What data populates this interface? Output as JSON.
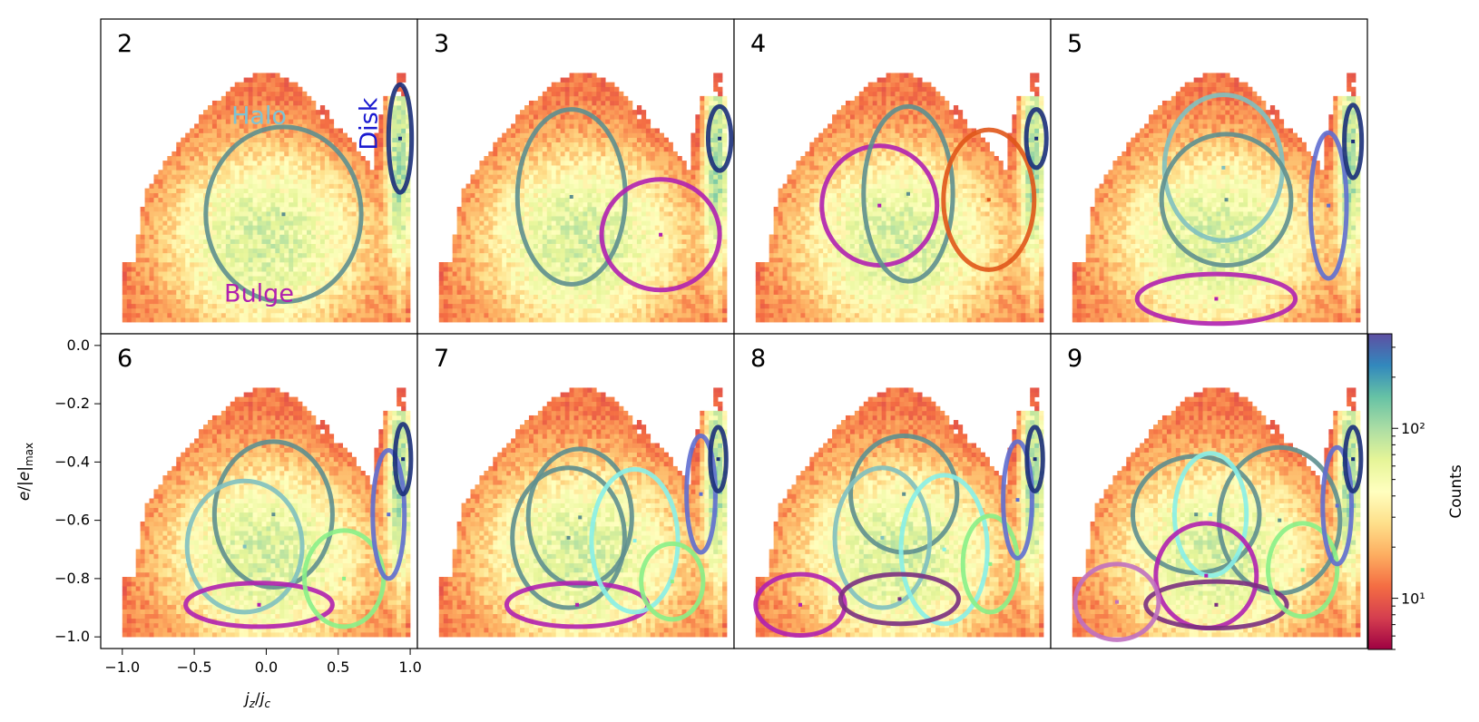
{
  "chart_data": {
    "type": "heatmap",
    "xlabel": "j_z/j_c",
    "ylabel": "e/|e|_max",
    "xlim": [
      -1.15,
      1.05
    ],
    "ylim": [
      -1.04,
      0.04
    ],
    "x_ticks": [
      -1.0,
      -0.5,
      0.0,
      0.5,
      1.0
    ],
    "x_tick_labels": [
      "−1.0",
      "−0.5",
      "0.0",
      "0.5",
      "1.0"
    ],
    "y_ticks": [
      0.0,
      -0.2,
      -0.4,
      -0.6,
      -0.8,
      -1.0
    ],
    "y_tick_labels": [
      "0.0",
      "−0.2",
      "−0.4",
      "−0.6",
      "−0.8",
      "−1.0"
    ],
    "colorbar": {
      "label": "Counts",
      "scale": "log",
      "range": [
        5,
        360
      ],
      "ticks": [
        10,
        100
      ],
      "tick_labels": [
        "10¹",
        "10²"
      ],
      "colormap": "Spectral"
    },
    "annotations": [
      {
        "text": "Halo",
        "color": "#7cc3d4"
      },
      {
        "text": "Bulge",
        "color": "#b020b0"
      },
      {
        "text": "Disk",
        "color": "#1a1ad0"
      }
    ],
    "panels": [
      {
        "label": "2",
        "components": [
          {
            "cx": 0.12,
            "cy": -0.63,
            "w": 1.08,
            "h": 0.6,
            "color": "#5e8f8f"
          },
          {
            "cx": 0.93,
            "cy": -0.37,
            "w": 0.16,
            "h": 0.37,
            "color": "#1b2f7a"
          }
        ]
      },
      {
        "label": "3",
        "components": [
          {
            "cx": -0.08,
            "cy": -0.57,
            "w": 0.75,
            "h": 0.6,
            "color": "#5e8f8f"
          },
          {
            "cx": 0.54,
            "cy": -0.7,
            "w": 0.82,
            "h": 0.38,
            "color": "#b020b0"
          },
          {
            "cx": 0.95,
            "cy": -0.37,
            "w": 0.16,
            "h": 0.22,
            "color": "#1b2f7a"
          }
        ]
      },
      {
        "label": "4",
        "components": [
          {
            "cx": -0.14,
            "cy": -0.6,
            "w": 0.8,
            "h": 0.41,
            "color": "#b020b0"
          },
          {
            "cx": 0.06,
            "cy": -0.56,
            "w": 0.62,
            "h": 0.6,
            "color": "#5e8f8f"
          },
          {
            "cx": 0.62,
            "cy": -0.58,
            "w": 0.63,
            "h": 0.48,
            "color": "#e0561a"
          },
          {
            "cx": 0.95,
            "cy": -0.37,
            "w": 0.14,
            "h": 0.2,
            "color": "#1b2f7a"
          }
        ]
      },
      {
        "label": "5",
        "components": [
          {
            "cx": 0.05,
            "cy": -0.47,
            "w": 0.82,
            "h": 0.5,
            "color": "#7fc0c0"
          },
          {
            "cx": 0.07,
            "cy": -0.58,
            "w": 0.9,
            "h": 0.45,
            "color": "#5e8f8f"
          },
          {
            "cx": 0.0,
            "cy": -0.92,
            "w": 1.1,
            "h": 0.17,
            "color": "#b020b0"
          },
          {
            "cx": 0.78,
            "cy": -0.6,
            "w": 0.25,
            "h": 0.5,
            "color": "#5f6ed0"
          },
          {
            "cx": 0.95,
            "cy": -0.38,
            "w": 0.12,
            "h": 0.25,
            "color": "#1b2f7a"
          }
        ]
      },
      {
        "label": "6",
        "components": [
          {
            "cx": 0.05,
            "cy": -0.58,
            "w": 0.82,
            "h": 0.5,
            "color": "#5e8f8f"
          },
          {
            "cx": -0.15,
            "cy": -0.69,
            "w": 0.8,
            "h": 0.45,
            "color": "#7fc0c0"
          },
          {
            "cx": -0.05,
            "cy": -0.89,
            "w": 1.02,
            "h": 0.15,
            "color": "#b020b0"
          },
          {
            "cx": 0.54,
            "cy": -0.8,
            "w": 0.55,
            "h": 0.33,
            "color": "#88f088"
          },
          {
            "cx": 0.85,
            "cy": -0.58,
            "w": 0.22,
            "h": 0.44,
            "color": "#5f6ed0"
          },
          {
            "cx": 0.95,
            "cy": -0.39,
            "w": 0.11,
            "h": 0.24,
            "color": "#1b2f7a"
          }
        ]
      },
      {
        "label": "7",
        "components": [
          {
            "cx": -0.1,
            "cy": -0.66,
            "w": 0.78,
            "h": 0.48,
            "color": "#5e8f8f"
          },
          {
            "cx": -0.02,
            "cy": -0.59,
            "w": 0.72,
            "h": 0.47,
            "color": "#5e8f8f"
          },
          {
            "cx": -0.04,
            "cy": -0.89,
            "w": 0.98,
            "h": 0.15,
            "color": "#b020b0"
          },
          {
            "cx": 0.36,
            "cy": -0.67,
            "w": 0.6,
            "h": 0.49,
            "color": "#88f0e8"
          },
          {
            "cx": 0.62,
            "cy": -0.81,
            "w": 0.43,
            "h": 0.26,
            "color": "#88f088"
          },
          {
            "cx": 0.82,
            "cy": -0.51,
            "w": 0.2,
            "h": 0.4,
            "color": "#5f6ed0"
          },
          {
            "cx": 0.94,
            "cy": -0.39,
            "w": 0.11,
            "h": 0.22,
            "color": "#1b2f7a"
          }
        ]
      },
      {
        "label": "8",
        "components": [
          {
            "cx": 0.03,
            "cy": -0.51,
            "w": 0.74,
            "h": 0.4,
            "color": "#5e8f8f"
          },
          {
            "cx": -0.12,
            "cy": -0.66,
            "w": 0.66,
            "h": 0.48,
            "color": "#7fc0c0"
          },
          {
            "cx": 0.31,
            "cy": -0.7,
            "w": 0.6,
            "h": 0.51,
            "color": "#88f0e8"
          },
          {
            "cx": -0.69,
            "cy": -0.89,
            "w": 0.62,
            "h": 0.21,
            "color": "#b020b0"
          },
          {
            "cx": 0.0,
            "cy": -0.87,
            "w": 0.82,
            "h": 0.17,
            "color": "#7a2f80"
          },
          {
            "cx": 0.63,
            "cy": -0.75,
            "w": 0.38,
            "h": 0.33,
            "color": "#88f088"
          },
          {
            "cx": 0.82,
            "cy": -0.53,
            "w": 0.2,
            "h": 0.4,
            "color": "#5f6ed0"
          },
          {
            "cx": 0.94,
            "cy": -0.39,
            "w": 0.11,
            "h": 0.22,
            "color": "#1b2f7a"
          }
        ]
      },
      {
        "label": "9",
        "components": [
          {
            "cx": -0.14,
            "cy": -0.58,
            "w": 0.88,
            "h": 0.4,
            "color": "#5e8f8f"
          },
          {
            "cx": 0.44,
            "cy": -0.6,
            "w": 0.84,
            "h": 0.5,
            "color": "#5e8f8f"
          },
          {
            "cx": -0.04,
            "cy": -0.58,
            "w": 0.5,
            "h": 0.42,
            "color": "#88f0e8"
          },
          {
            "cx": -0.07,
            "cy": -0.79,
            "w": 0.7,
            "h": 0.36,
            "color": "#b020b0"
          },
          {
            "cx": 0.0,
            "cy": -0.89,
            "w": 0.98,
            "h": 0.16,
            "color": "#7a2f80"
          },
          {
            "cx": -0.69,
            "cy": -0.88,
            "w": 0.58,
            "h": 0.26,
            "color": "#c070c0"
          },
          {
            "cx": 0.6,
            "cy": -0.77,
            "w": 0.48,
            "h": 0.32,
            "color": "#88f088"
          },
          {
            "cx": 0.84,
            "cy": -0.55,
            "w": 0.2,
            "h": 0.4,
            "color": "#5f6ed0"
          },
          {
            "cx": 0.95,
            "cy": -0.39,
            "w": 0.11,
            "h": 0.22,
            "color": "#1b2f7a"
          }
        ]
      }
    ]
  }
}
